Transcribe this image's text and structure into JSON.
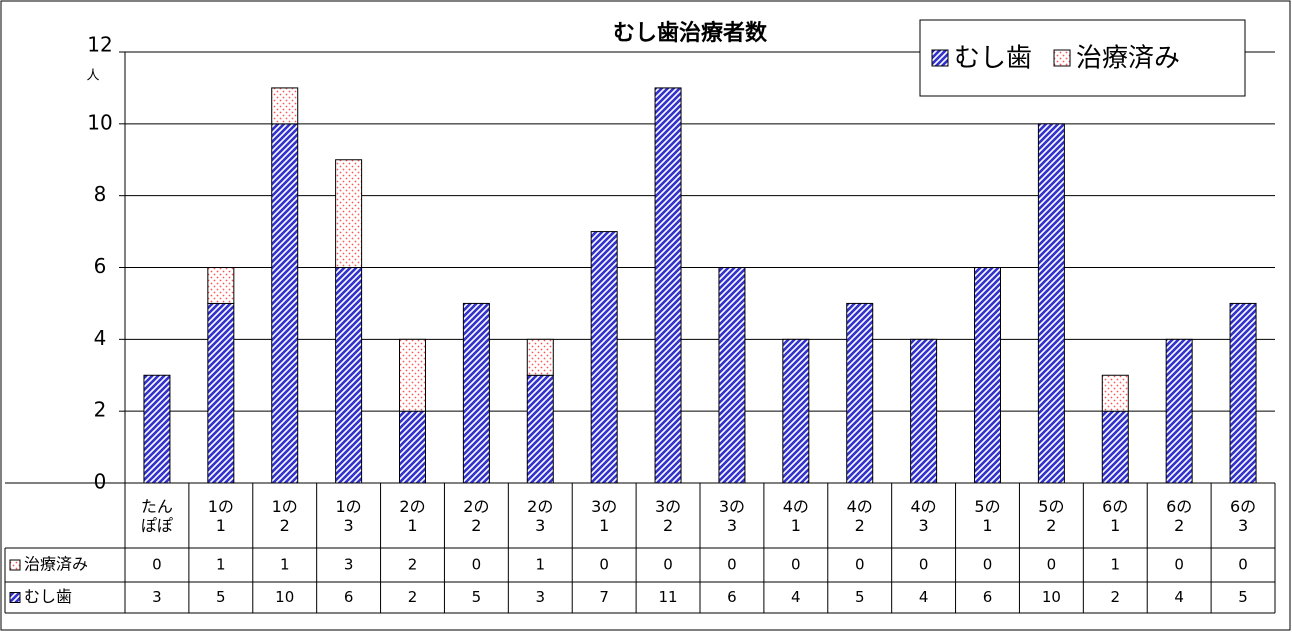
{
  "chart_data": {
    "type": "stacked-bar",
    "title": "むし歯治療者数",
    "y_unit": "人",
    "categories": [
      "たんぽぽ",
      "1の1",
      "1の2",
      "1の3",
      "2の1",
      "2の2",
      "2の3",
      "3の1",
      "3の2",
      "3の3",
      "4の1",
      "4の2",
      "4の3",
      "5の1",
      "5の2",
      "6の1",
      "6の2",
      "6の3"
    ],
    "series": [
      {
        "name": "むし歯",
        "color": "#3333cc",
        "values": [
          3,
          5,
          10,
          6,
          2,
          5,
          3,
          7,
          11,
          6,
          4,
          5,
          4,
          6,
          10,
          2,
          4,
          5
        ]
      },
      {
        "name": "治療済み",
        "color": "#ff5555",
        "values": [
          0,
          1,
          1,
          3,
          2,
          0,
          1,
          0,
          0,
          0,
          0,
          0,
          0,
          0,
          0,
          1,
          0,
          0
        ]
      }
    ],
    "ylim": [
      0,
      12
    ],
    "yticks": [
      0,
      2,
      4,
      6,
      8,
      10,
      12
    ],
    "grid": true,
    "legend": "top-right"
  }
}
